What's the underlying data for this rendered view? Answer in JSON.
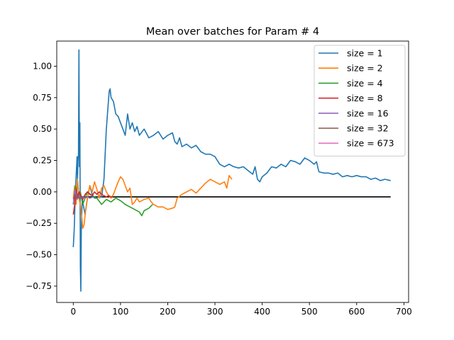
{
  "chart_data": {
    "type": "line",
    "title": "Mean over batches for Param # 4",
    "xlabel": "",
    "ylabel": "",
    "xlim": [
      -35,
      710
    ],
    "ylim": [
      -0.88,
      1.2
    ],
    "x_ticks": [
      0,
      100,
      200,
      300,
      400,
      500,
      600,
      700
    ],
    "y_ticks": [
      -0.75,
      -0.5,
      -0.25,
      0.0,
      0.25,
      0.5,
      0.75,
      1.0
    ],
    "x_tick_labels": [
      "0",
      "100",
      "200",
      "300",
      "400",
      "500",
      "600",
      "700"
    ],
    "y_tick_labels": [
      "−0.75",
      "−0.50",
      "−0.25",
      "0.00",
      "0.25",
      "0.50",
      "0.75",
      "1.00"
    ],
    "grid": false,
    "legend_position": "top-right",
    "reference_line": {
      "value": -0.04,
      "x_range": [
        0,
        672
      ],
      "color": "#000000"
    },
    "series": [
      {
        "name": "size = 1",
        "color": "#1f77b4",
        "points": [
          [
            0,
            -0.44
          ],
          [
            2,
            -0.3
          ],
          [
            4,
            -0.05
          ],
          [
            6,
            0.12
          ],
          [
            8,
            0.28
          ],
          [
            9,
            0.1
          ],
          [
            10,
            0.25
          ],
          [
            11,
            0.3
          ],
          [
            12,
            1.13
          ],
          [
            13,
            0.2
          ],
          [
            14,
            0.55
          ],
          [
            15,
            -0.6
          ],
          [
            16,
            -0.79
          ],
          [
            17,
            -0.3
          ],
          [
            19,
            -0.05
          ],
          [
            21,
            -0.1
          ],
          [
            25,
            -0.18
          ],
          [
            28,
            -0.1
          ],
          [
            30,
            -0.05
          ],
          [
            35,
            0.05
          ],
          [
            40,
            -0.02
          ],
          [
            45,
            -0.05
          ],
          [
            50,
            -0.05
          ],
          [
            55,
            -0.03
          ],
          [
            60,
            -0.04
          ],
          [
            65,
            0.1
          ],
          [
            70,
            0.5
          ],
          [
            73,
            0.65
          ],
          [
            76,
            0.8
          ],
          [
            78,
            0.82
          ],
          [
            80,
            0.75
          ],
          [
            85,
            0.72
          ],
          [
            90,
            0.62
          ],
          [
            95,
            0.6
          ],
          [
            100,
            0.55
          ],
          [
            105,
            0.5
          ],
          [
            110,
            0.45
          ],
          [
            115,
            0.62
          ],
          [
            120,
            0.5
          ],
          [
            125,
            0.55
          ],
          [
            130,
            0.48
          ],
          [
            135,
            0.52
          ],
          [
            140,
            0.45
          ],
          [
            150,
            0.5
          ],
          [
            160,
            0.43
          ],
          [
            170,
            0.45
          ],
          [
            180,
            0.48
          ],
          [
            190,
            0.42
          ],
          [
            200,
            0.45
          ],
          [
            210,
            0.47
          ],
          [
            215,
            0.4
          ],
          [
            220,
            0.38
          ],
          [
            225,
            0.43
          ],
          [
            230,
            0.36
          ],
          [
            240,
            0.38
          ],
          [
            250,
            0.35
          ],
          [
            260,
            0.37
          ],
          [
            270,
            0.32
          ],
          [
            280,
            0.3
          ],
          [
            290,
            0.3
          ],
          [
            300,
            0.28
          ],
          [
            310,
            0.22
          ],
          [
            320,
            0.2
          ],
          [
            330,
            0.22
          ],
          [
            340,
            0.2
          ],
          [
            350,
            0.19
          ],
          [
            360,
            0.2
          ],
          [
            370,
            0.17
          ],
          [
            380,
            0.14
          ],
          [
            385,
            0.2
          ],
          [
            390,
            0.1
          ],
          [
            395,
            0.08
          ],
          [
            400,
            0.12
          ],
          [
            410,
            0.15
          ],
          [
            420,
            0.2
          ],
          [
            430,
            0.19
          ],
          [
            440,
            0.22
          ],
          [
            450,
            0.2
          ],
          [
            460,
            0.25
          ],
          [
            470,
            0.24
          ],
          [
            480,
            0.22
          ],
          [
            490,
            0.27
          ],
          [
            500,
            0.25
          ],
          [
            510,
            0.22
          ],
          [
            515,
            0.24
          ],
          [
            520,
            0.16
          ],
          [
            530,
            0.15
          ],
          [
            540,
            0.15
          ],
          [
            550,
            0.14
          ],
          [
            560,
            0.15
          ],
          [
            570,
            0.12
          ],
          [
            580,
            0.13
          ],
          [
            590,
            0.12
          ],
          [
            600,
            0.13
          ],
          [
            610,
            0.12
          ],
          [
            620,
            0.12
          ],
          [
            630,
            0.1
          ],
          [
            640,
            0.11
          ],
          [
            650,
            0.09
          ],
          [
            660,
            0.1
          ],
          [
            672,
            0.09
          ]
        ]
      },
      {
        "name": "size = 2",
        "color": "#ff7f0e",
        "points": [
          [
            0,
            -0.05
          ],
          [
            3,
            0.05
          ],
          [
            6,
            -0.1
          ],
          [
            9,
            0.1
          ],
          [
            12,
            -0.05
          ],
          [
            15,
            -0.1
          ],
          [
            18,
            -0.2
          ],
          [
            20,
            -0.29
          ],
          [
            23,
            -0.26
          ],
          [
            26,
            -0.15
          ],
          [
            30,
            -0.05
          ],
          [
            35,
            0.05
          ],
          [
            40,
            0.0
          ],
          [
            45,
            0.08
          ],
          [
            50,
            0.02
          ],
          [
            55,
            -0.05
          ],
          [
            60,
            0.03
          ],
          [
            65,
            0.05
          ],
          [
            70,
            0.0
          ],
          [
            75,
            -0.03
          ],
          [
            80,
            -0.05
          ],
          [
            85,
            -0.02
          ],
          [
            90,
            0.03
          ],
          [
            95,
            0.08
          ],
          [
            100,
            0.12
          ],
          [
            105,
            0.1
          ],
          [
            110,
            0.05
          ],
          [
            115,
            0.0
          ],
          [
            120,
            0.03
          ],
          [
            125,
            -0.1
          ],
          [
            130,
            -0.08
          ],
          [
            135,
            -0.05
          ],
          [
            140,
            -0.08
          ],
          [
            150,
            -0.06
          ],
          [
            160,
            -0.05
          ],
          [
            165,
            -0.08
          ],
          [
            170,
            -0.1
          ],
          [
            180,
            -0.12
          ],
          [
            190,
            -0.12
          ],
          [
            200,
            -0.14
          ],
          [
            210,
            -0.13
          ],
          [
            215,
            -0.12
          ],
          [
            220,
            -0.05
          ],
          [
            230,
            -0.02
          ],
          [
            240,
            0.0
          ],
          [
            250,
            0.02
          ],
          [
            260,
            -0.01
          ],
          [
            270,
            0.03
          ],
          [
            280,
            0.07
          ],
          [
            290,
            0.1
          ],
          [
            300,
            0.08
          ],
          [
            310,
            0.06
          ],
          [
            320,
            0.08
          ],
          [
            325,
            0.03
          ],
          [
            330,
            0.13
          ],
          [
            336,
            0.1
          ]
        ]
      },
      {
        "name": "size = 4",
        "color": "#2ca02c",
        "points": [
          [
            0,
            -0.1
          ],
          [
            5,
            0.05
          ],
          [
            10,
            -0.05
          ],
          [
            15,
            0.0
          ],
          [
            20,
            -0.1
          ],
          [
            25,
            -0.05
          ],
          [
            30,
            0.0
          ],
          [
            40,
            -0.03
          ],
          [
            50,
            -0.05
          ],
          [
            60,
            -0.1
          ],
          [
            70,
            -0.06
          ],
          [
            80,
            -0.08
          ],
          [
            90,
            -0.05
          ],
          [
            100,
            -0.07
          ],
          [
            110,
            -0.1
          ],
          [
            120,
            -0.12
          ],
          [
            130,
            -0.14
          ],
          [
            140,
            -0.16
          ],
          [
            145,
            -0.19
          ],
          [
            150,
            -0.15
          ],
          [
            160,
            -0.13
          ],
          [
            168,
            -0.1
          ]
        ]
      },
      {
        "name": "size = 8",
        "color": "#d62728",
        "points": [
          [
            0,
            -0.18
          ],
          [
            3,
            -0.1
          ],
          [
            6,
            0.02
          ],
          [
            9,
            -0.05
          ],
          [
            12,
            0.0
          ],
          [
            16,
            -0.03
          ],
          [
            20,
            -0.06
          ],
          [
            25,
            -0.02
          ],
          [
            30,
            0.0
          ],
          [
            35,
            -0.02
          ],
          [
            40,
            -0.03
          ],
          [
            45,
            0.0
          ],
          [
            50,
            -0.02
          ],
          [
            55,
            0.0
          ],
          [
            60,
            -0.02
          ],
          [
            65,
            -0.03
          ],
          [
            70,
            -0.04
          ],
          [
            75,
            -0.03
          ],
          [
            80,
            -0.04
          ],
          [
            84,
            -0.04
          ]
        ]
      },
      {
        "name": "size = 16",
        "color": "#9467bd",
        "points": [
          [
            0,
            -0.1
          ],
          [
            4,
            0.02
          ],
          [
            8,
            -0.06
          ],
          [
            12,
            -0.03
          ],
          [
            16,
            -0.05
          ],
          [
            20,
            -0.04
          ],
          [
            25,
            -0.05
          ],
          [
            30,
            -0.04
          ],
          [
            35,
            -0.05
          ],
          [
            42,
            -0.04
          ]
        ]
      },
      {
        "name": "size = 32",
        "color": "#8c564b",
        "points": [
          [
            0,
            -0.06
          ],
          [
            3,
            -0.03
          ],
          [
            6,
            -0.05
          ],
          [
            10,
            -0.04
          ],
          [
            14,
            -0.05
          ],
          [
            18,
            -0.04
          ],
          [
            21,
            -0.04
          ]
        ]
      },
      {
        "name": "size = 673",
        "color": "#e377c2",
        "points": [
          [
            0,
            -0.04
          ],
          [
            1,
            -0.04
          ]
        ]
      }
    ]
  }
}
